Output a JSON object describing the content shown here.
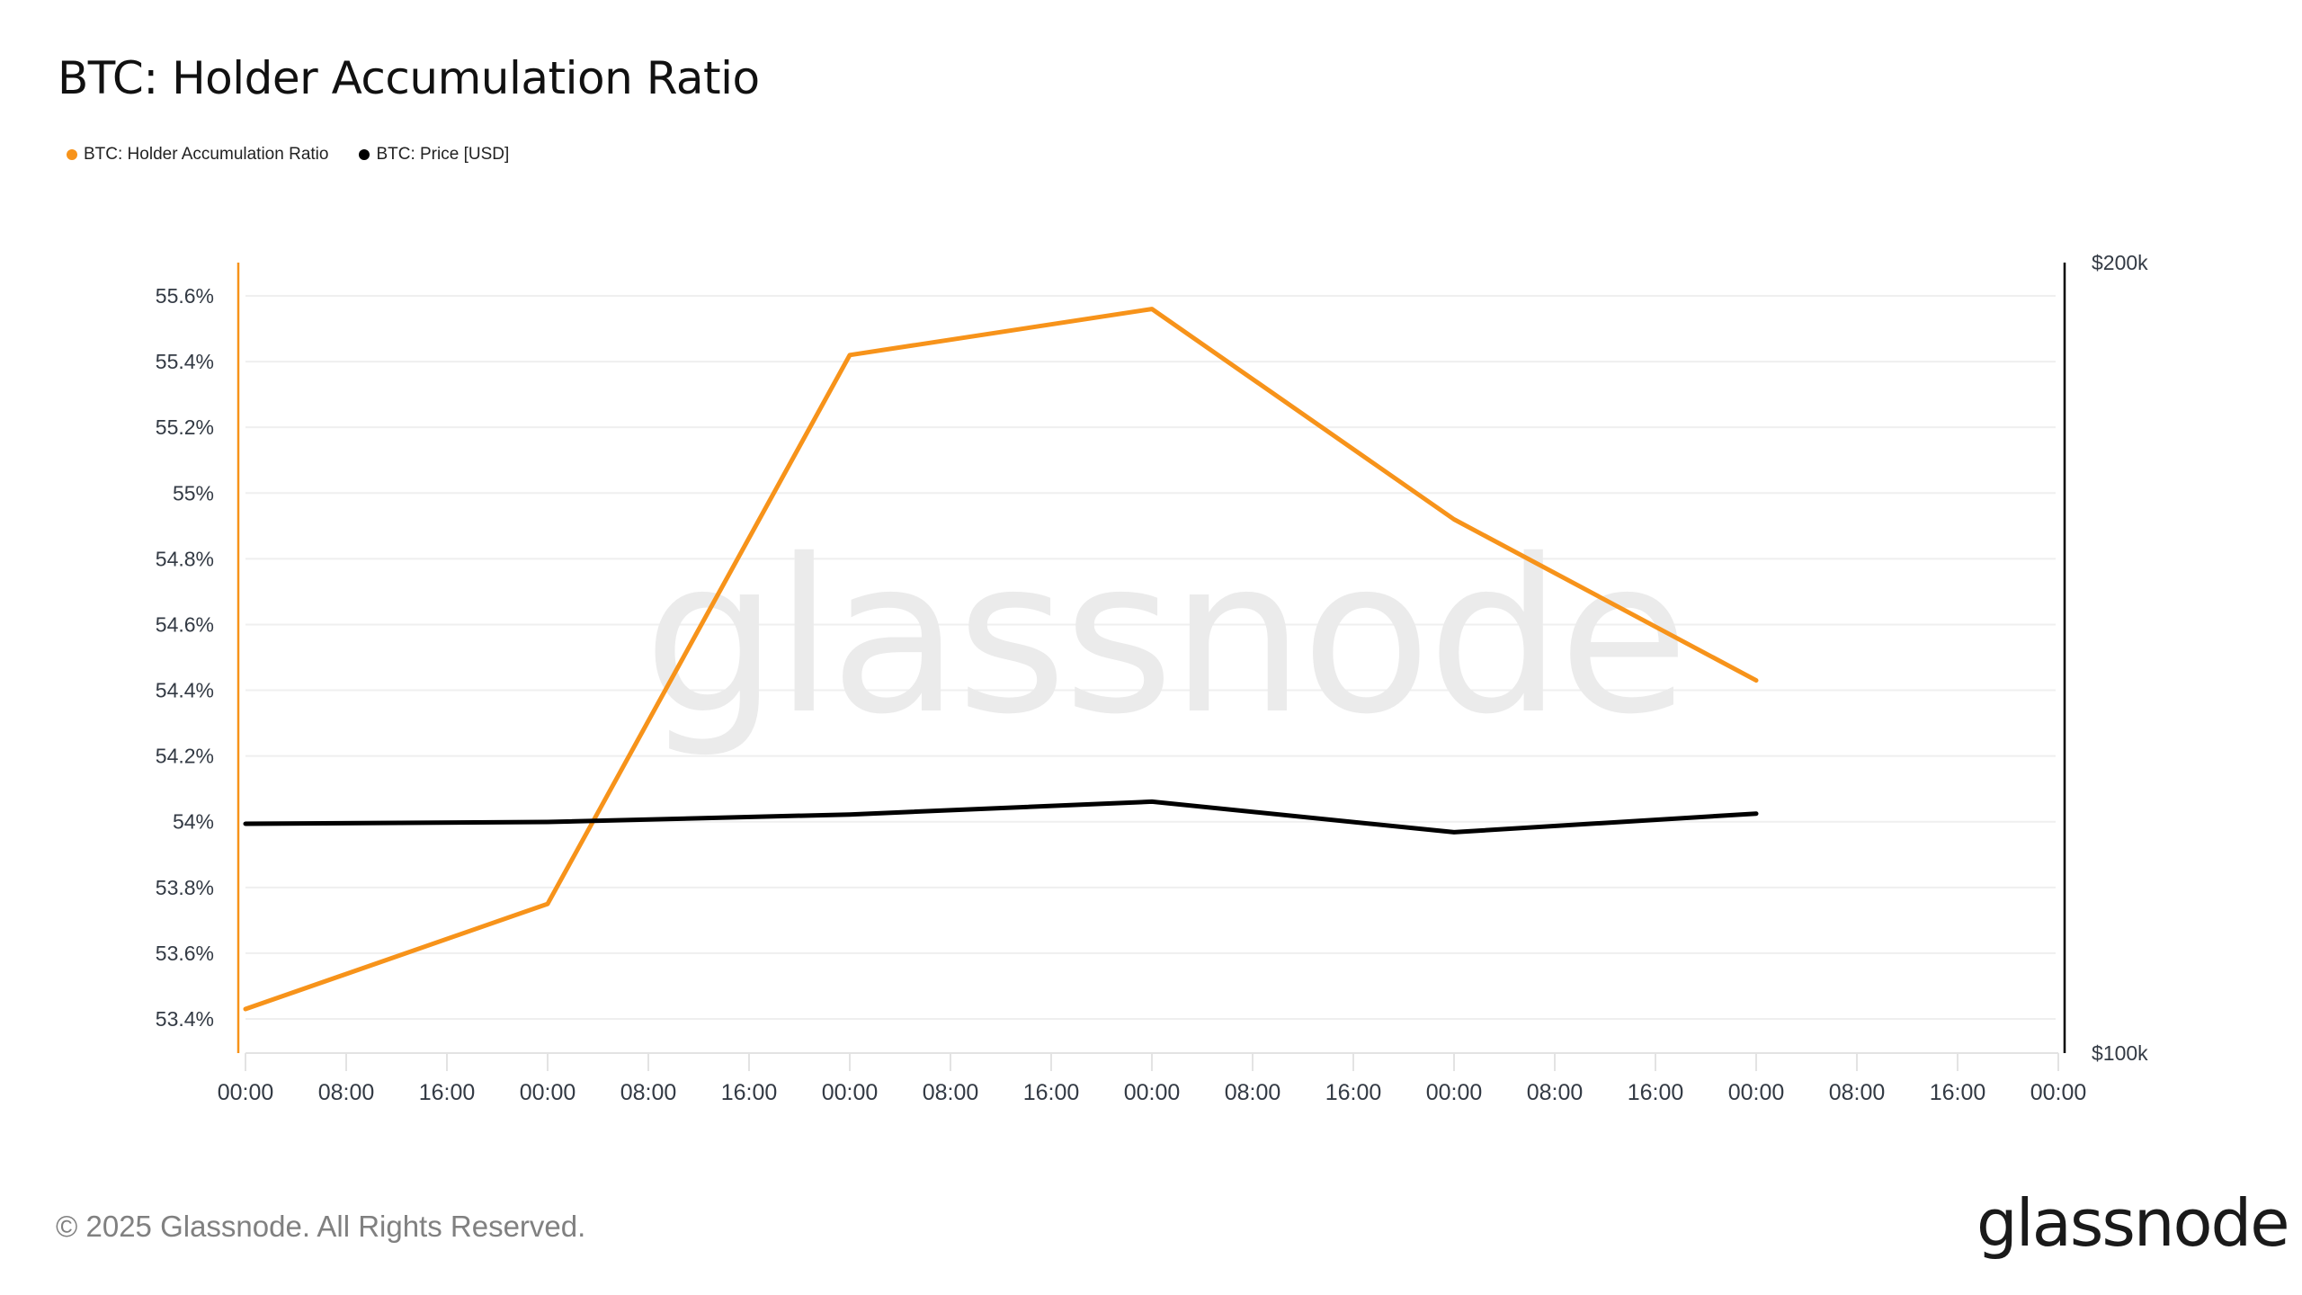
{
  "title": "BTC: Holder Accumulation Ratio",
  "legend": [
    {
      "label": "BTC: Holder Accumulation Ratio",
      "color": "#f7931a"
    },
    {
      "label": "BTC: Price [USD]",
      "color": "#000000"
    }
  ],
  "footer": {
    "copyright": "© 2025 Glassnode. All Rights Reserved.",
    "logo": "glassnode"
  },
  "watermark": "glassnode",
  "chart_data": {
    "type": "line",
    "title": "BTC: Holder Accumulation Ratio",
    "xlabel": "",
    "ylabel": "",
    "x_tick_labels": [
      "00:00",
      "08:00",
      "16:00",
      "00:00",
      "08:00",
      "16:00",
      "00:00",
      "08:00",
      "16:00",
      "00:00",
      "08:00",
      "16:00",
      "00:00",
      "08:00",
      "16:00",
      "00:00",
      "08:00",
      "16:00",
      "00:00"
    ],
    "x": [
      "00:00",
      "00:00",
      "00:00",
      "00:00",
      "00:00",
      "00:00"
    ],
    "x_tick_index": [
      0,
      3,
      6,
      9,
      12,
      15
    ],
    "left_axis": {
      "ticks": [
        "55.6%",
        "55.4%",
        "55.2%",
        "55%",
        "54.8%",
        "54.6%",
        "54.4%",
        "54.2%",
        "54%",
        "53.8%",
        "53.6%",
        "53.4%"
      ],
      "tick_values": [
        55.6,
        55.4,
        55.2,
        55.0,
        54.8,
        54.6,
        54.4,
        54.2,
        54.0,
        53.8,
        53.6,
        53.4
      ],
      "range": [
        53.32,
        55.7
      ],
      "color": "#f7931a"
    },
    "right_axis": {
      "ticks": [
        "$200k",
        "$100k"
      ],
      "range": [
        100000,
        200000
      ],
      "scale": "log",
      "color": "#000000"
    },
    "grid": true,
    "legend_position": "top-left",
    "series": [
      {
        "name": "BTC: Holder Accumulation Ratio",
        "axis": "left",
        "unit": "%",
        "color": "#f7931a",
        "values": [
          53.43,
          53.75,
          55.42,
          55.56,
          54.92,
          54.43
        ]
      },
      {
        "name": "BTC: Price [USD]",
        "axis": "right",
        "unit": "USD",
        "color": "#000000",
        "values": [
          122200,
          122400,
          123200,
          124600,
          121300,
          123300
        ]
      }
    ]
  }
}
